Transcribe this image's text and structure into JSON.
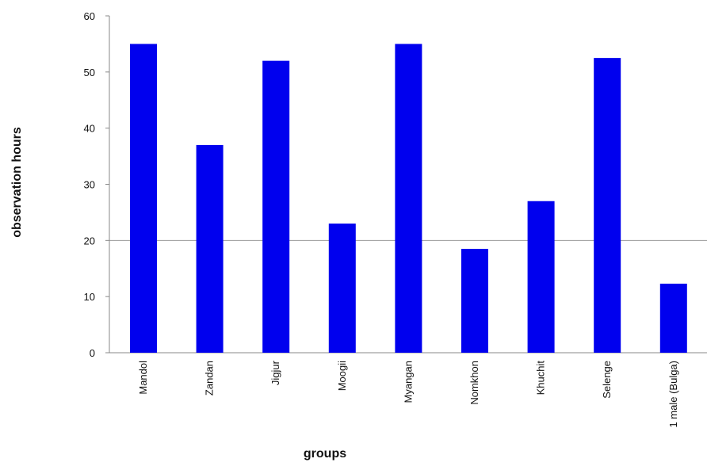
{
  "chart_data": {
    "type": "bar",
    "title": "",
    "xlabel": "groups",
    "ylabel": "observation hours",
    "categories": [
      "Mandol",
      "Zandan",
      "Jigjur",
      "Moogii",
      "Myangan",
      "Nomkhon",
      "Khuchit",
      "Selenge",
      "1 male (Bulga)"
    ],
    "values": [
      55,
      37,
      52,
      23,
      55,
      18.5,
      27,
      52.5,
      12.3
    ],
    "ylim": [
      0,
      60
    ],
    "yticks": [
      "0",
      "10",
      "20",
      "30",
      "40",
      "50",
      "60"
    ],
    "ytick_values": [
      0,
      10,
      20,
      30,
      40,
      50,
      60
    ],
    "gridline_values": [
      20
    ],
    "grid": "single horizontal line at 20",
    "legend": "none",
    "bar_color": "#0000ee",
    "axis_color": "#888888"
  }
}
